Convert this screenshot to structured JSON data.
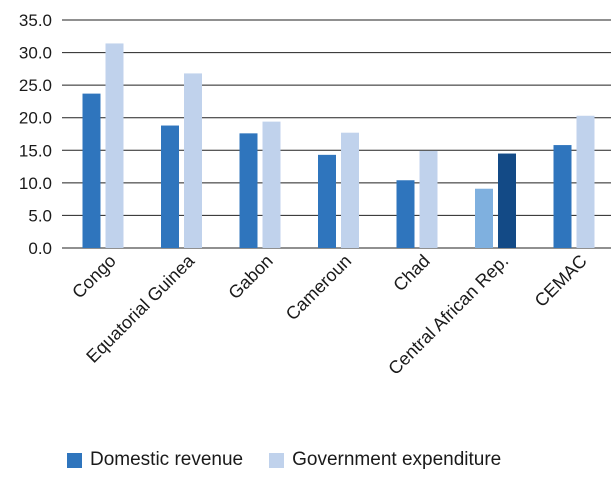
{
  "chart_data": {
    "type": "bar",
    "title": "",
    "xlabel": "",
    "ylabel": "",
    "ylim": [
      0,
      35
    ],
    "yticks": [
      "0.0",
      "5.0",
      "10.0",
      "15.0",
      "20.0",
      "25.0",
      "30.0",
      "35.0"
    ],
    "grid": "horizontal",
    "legend_position": "bottom",
    "categories": [
      "Congo",
      "Equatorial Guinea",
      "Gabon",
      "Cameroun",
      "Chad",
      "Central African Rep.",
      "CEMAC"
    ],
    "series": [
      {
        "name": "Domestic revenue",
        "color": "#2f75bd",
        "values": [
          23.7,
          18.8,
          17.6,
          14.3,
          10.4,
          9.1,
          15.8
        ],
        "point_colors": [
          "#2f75bd",
          "#2f75bd",
          "#2f75bd",
          "#2f75bd",
          "#2f75bd",
          "#7fb0df",
          "#2f75bd"
        ]
      },
      {
        "name": "Government expenditure",
        "color": "#c0d2ec",
        "values": [
          31.4,
          26.8,
          19.4,
          17.7,
          14.9,
          14.5,
          20.3
        ],
        "point_colors": [
          "#c0d2ec",
          "#c0d2ec",
          "#c0d2ec",
          "#c0d2ec",
          "#c0d2ec",
          "#134a86",
          "#c0d2ec"
        ]
      }
    ]
  }
}
